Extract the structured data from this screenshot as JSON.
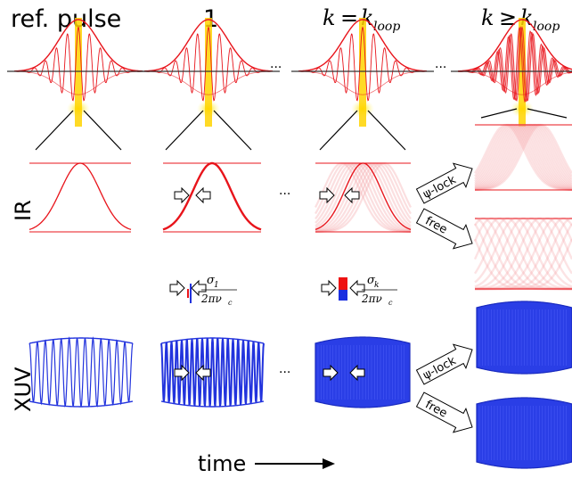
{
  "columns": {
    "ref": "ref. pulse",
    "one": "1",
    "k_main": "k",
    "k_eq": "=",
    "k_sub": "loop",
    "k_geq": "≥"
  },
  "rows": {
    "ir": "IR",
    "xuv": "XUV"
  },
  "ellipsis": "···",
  "sigma": {
    "one_top": "σ",
    "one_top_sub": "1",
    "k_top": "σ",
    "k_top_sub": "k",
    "bottom": "2πν",
    "bottom_sub": "c"
  },
  "arrows": {
    "lock": "ψ-lock",
    "free": "free"
  },
  "time_label": "time",
  "colors": {
    "pulse": "#e8141b",
    "ir": "#e8141b",
    "xuv": "#2233dd",
    "glow": "#ffe000",
    "ghost": "#f4a3a6"
  }
}
